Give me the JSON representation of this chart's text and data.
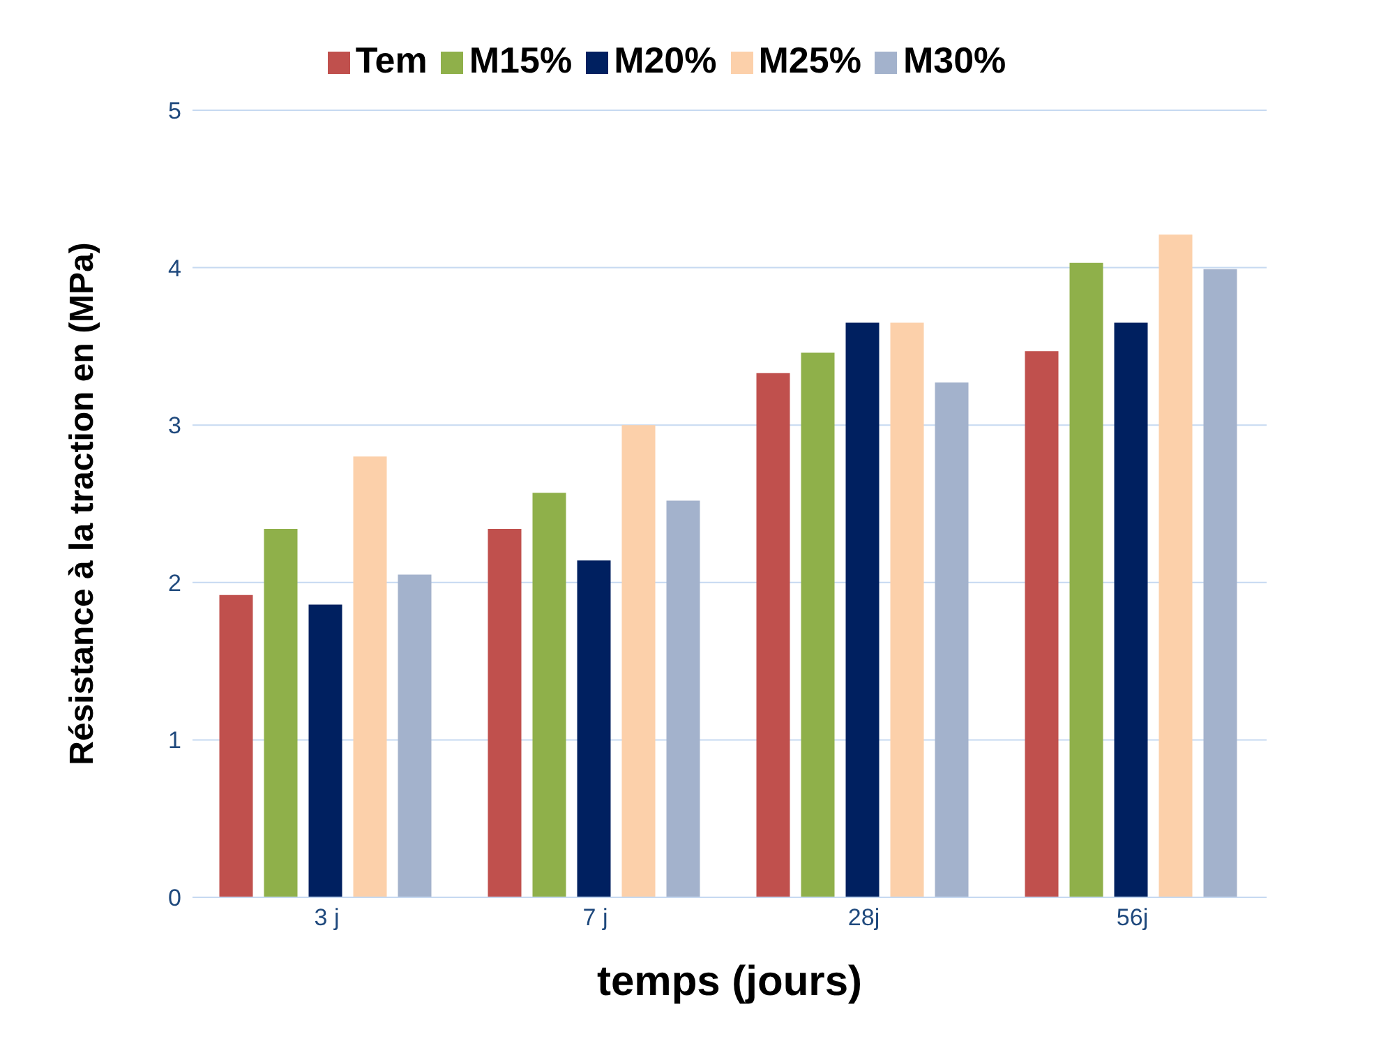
{
  "chart_data": {
    "type": "bar",
    "xlabel": "temps (jours)",
    "ylabel": "Résistance à la traction  en (MPa)",
    "categories": [
      "3 j",
      "7 j",
      "28j",
      "56j"
    ],
    "series": [
      {
        "name": "Tem",
        "color": "#c0504d",
        "values": [
          1.92,
          2.34,
          3.33,
          3.47
        ]
      },
      {
        "name": "M15%",
        "color": "#8fb04a",
        "values": [
          2.34,
          2.57,
          3.46,
          4.03
        ]
      },
      {
        "name": "M20%",
        "color": "#002060",
        "values": [
          1.86,
          2.14,
          3.65,
          3.65
        ]
      },
      {
        "name": "M25%",
        "color": "#fcd0aa",
        "values": [
          2.8,
          3.0,
          3.65,
          4.21
        ]
      },
      {
        "name": "M30%",
        "color": "#a3b2cc",
        "values": [
          2.05,
          2.52,
          3.27,
          3.99
        ]
      }
    ],
    "ylim": [
      0,
      5
    ],
    "yticks": [
      0,
      1,
      2,
      3,
      4,
      5
    ],
    "grid": "y",
    "legend": "top"
  }
}
